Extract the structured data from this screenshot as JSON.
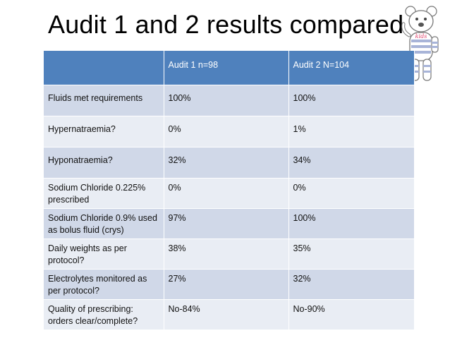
{
  "title": "Audit 1 and 2 results compared",
  "table": {
    "headers": [
      "",
      "Audit 1 n=98",
      "Audit 2 N=104"
    ],
    "rows": [
      {
        "label": "Fluids met requirements",
        "a1": "100%",
        "a2": "100%"
      },
      {
        "label": "Hypernatraemia?",
        "a1": "0%",
        "a2": "1%"
      },
      {
        "label": "Hyponatraemia?",
        "a1": "32%",
        "a2": "34%"
      },
      {
        "label": "Sodium Chloride 0.225% prescribed",
        "a1": "0%",
        "a2": "0%"
      },
      {
        "label": "Sodium Chloride 0.9% used as bolus fluid (crys)",
        "a1": "97%",
        "a2": "100%"
      },
      {
        "label": "Daily weights as per protocol?",
        "a1": "38%",
        "a2": "35%"
      },
      {
        "label": "Electrolytes monitored as per protocol?",
        "a1": "27%",
        "a2": "32%"
      },
      {
        "label": "Quality of prescribing: orders clear/complete?",
        "a1": "No-84%",
        "a2": "No-90%"
      }
    ]
  },
  "logo": {
    "text": "kids"
  },
  "colors": {
    "header": "#4f81bd",
    "row_dark": "#d0d8e8",
    "row_light": "#e9edf4",
    "logo_text": "#e0406a"
  }
}
